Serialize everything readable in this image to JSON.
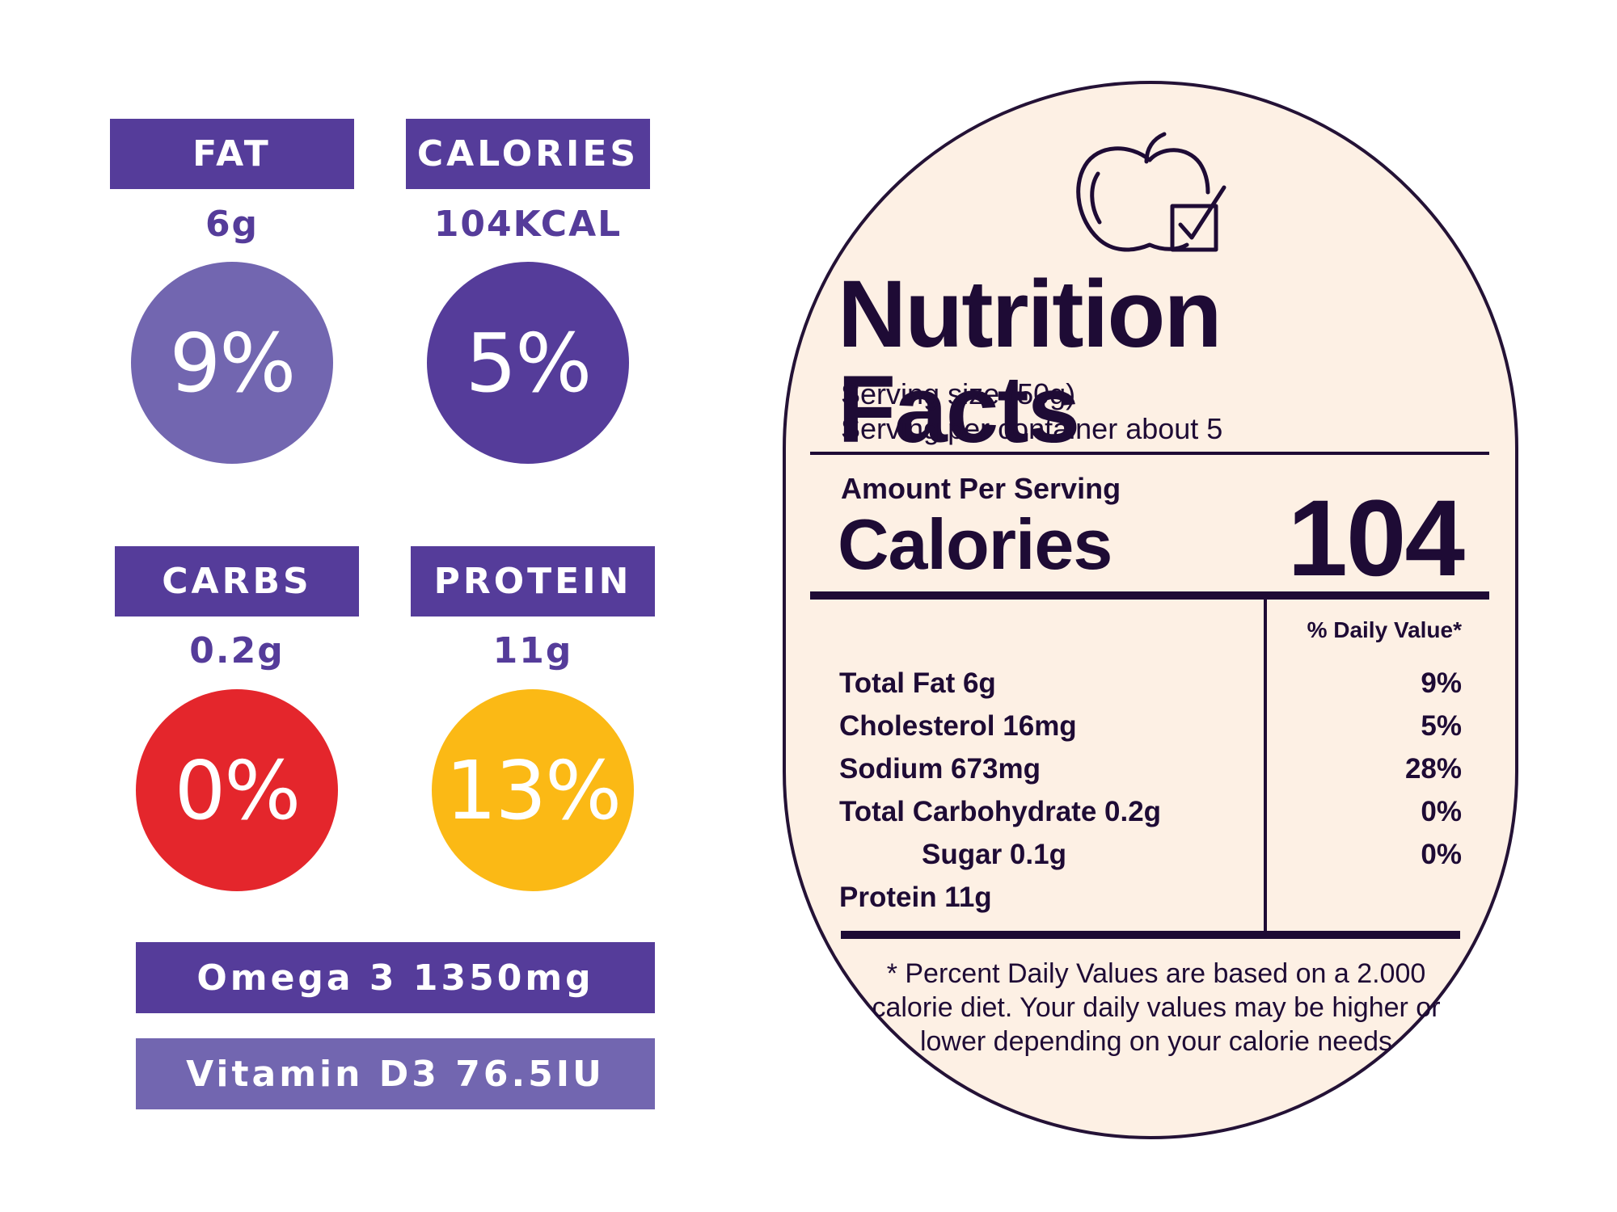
{
  "stats": [
    {
      "label": "FAT",
      "amount": "6g",
      "percent": "9%",
      "color": "#7266b0"
    },
    {
      "label": "CALORIES",
      "amount": "104KCAL",
      "percent": "5%",
      "color": "#553c9a"
    },
    {
      "label": "CARBS",
      "amount": "0.2g",
      "percent": "0%",
      "color": "#e4262c"
    },
    {
      "label": "PROTEIN",
      "amount": "11g",
      "percent": "13%",
      "color": "#fbb915"
    }
  ],
  "bars": [
    {
      "text": "Omega 3 1350mg",
      "color": "#553c9a"
    },
    {
      "text": "Vitamin D3 76.5IU",
      "color": "#7266b0"
    }
  ],
  "label": {
    "icon": "apple-checkbox-icon",
    "title": "Nutrition Facts",
    "serving_size": "Serving size (50g)",
    "servings_per_container": "Serving per container about 5",
    "amount_per_serving": "Amount Per Serving",
    "calories_label": "Calories",
    "calories_value": "104",
    "daily_value_header": "% Daily Value*",
    "nutrients": [
      {
        "name": "Total Fat 6g",
        "dv": "9%",
        "indent": false
      },
      {
        "name": "Cholesterol 16mg",
        "dv": "5%",
        "indent": false
      },
      {
        "name": "Sodium 673mg",
        "dv": "28%",
        "indent": false
      },
      {
        "name": "Total Carbohydrate 0.2g",
        "dv": "0%",
        "indent": false
      },
      {
        "name": "Sugar 0.1g",
        "dv": "0%",
        "indent": true
      },
      {
        "name": "Protein 11g",
        "dv": "",
        "indent": false
      }
    ],
    "footnote": "* Percent Daily Values are based on a 2.000 calorie diet. Your daily values may be higher or lower depending on your calorie needs"
  }
}
